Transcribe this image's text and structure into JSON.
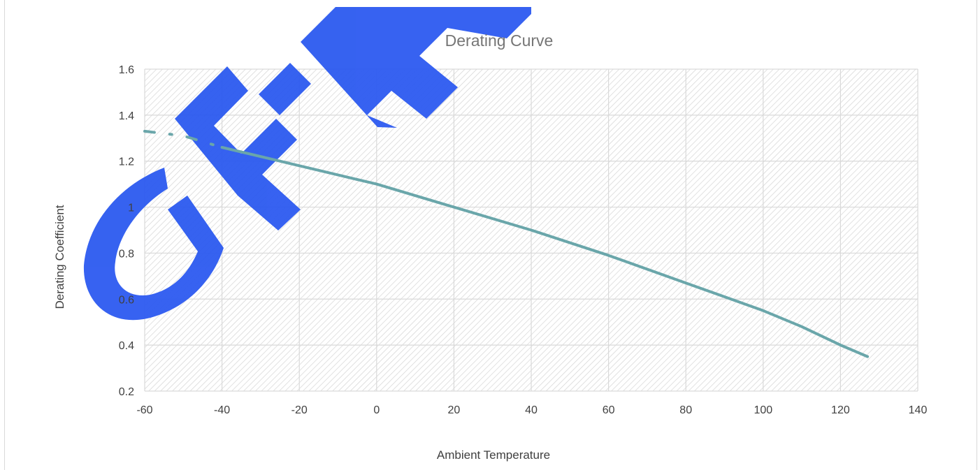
{
  "chart_data": {
    "type": "line",
    "title": "Derating Curve",
    "xlabel": "Ambient Temperature",
    "ylabel": "Derating Coefficient",
    "xlim": [
      -60,
      140
    ],
    "ylim": [
      0.2,
      1.6
    ],
    "x_ticks": [
      "-60",
      "-40",
      "-20",
      "0",
      "20",
      "40",
      "60",
      "80",
      "100",
      "120",
      "140"
    ],
    "y_ticks": [
      "0.2",
      "0.4",
      "0.6",
      "0.8",
      "1",
      "1.2",
      "1.4",
      "1.6"
    ],
    "grid": true,
    "series": [
      {
        "color": "#6aa6aa",
        "style": "dashed",
        "points": [
          [
            -60,
            1.33
          ],
          [
            -50,
            1.31
          ],
          [
            -40,
            1.26
          ]
        ]
      },
      {
        "color": "#6aa6aa",
        "style": "solid",
        "points": [
          [
            -40,
            1.26
          ],
          [
            -20,
            1.18
          ],
          [
            0,
            1.1
          ],
          [
            20,
            1.0
          ],
          [
            40,
            0.9
          ],
          [
            60,
            0.79
          ],
          [
            80,
            0.67
          ],
          [
            100,
            0.55
          ],
          [
            110,
            0.48
          ],
          [
            120,
            0.4
          ],
          [
            127,
            0.35
          ]
        ]
      }
    ],
    "watermark_color": "#2c5af0"
  }
}
